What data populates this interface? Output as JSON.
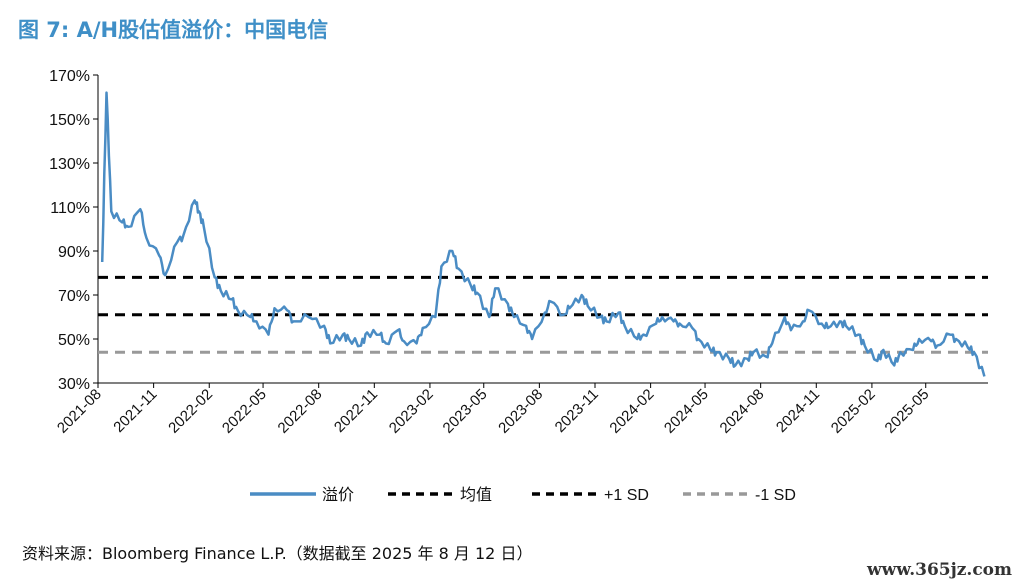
{
  "title": "图 7: A/H股估值溢价：中国电信",
  "source": "资料来源：Bloomberg Finance L.P.（数据截至 2025 年 8 月 12 日）",
  "watermark": "www.365jz.com",
  "chart_data": {
    "type": "line",
    "title": "图 7: A/H股估值溢价：中国电信",
    "xlabel": "",
    "ylabel": "",
    "ylim": [
      30,
      170
    ],
    "y_ticks": [
      "170%",
      "150%",
      "130%",
      "110%",
      "90%",
      "70%",
      "50%",
      "30%"
    ],
    "y_tick_values": [
      170,
      150,
      130,
      110,
      90,
      70,
      50,
      30
    ],
    "x_ticks": [
      "2021-08",
      "2021-11",
      "2022-02",
      "2022-05",
      "2022-08",
      "2022-11",
      "2023-02",
      "2023-05",
      "2023-08",
      "2023-11",
      "2024-02",
      "2024-05",
      "2024-08",
      "2024-11",
      "2025-02",
      "2025-05"
    ],
    "grid": false,
    "legend_position": "bottom",
    "series": [
      {
        "name": "溢价",
        "color": "#4a8cc4",
        "style": "solid",
        "points": [
          [
            "2021-08",
            85
          ],
          [
            "2021-08",
            162
          ],
          [
            "2021-08",
            108
          ],
          [
            "2021-09",
            103
          ],
          [
            "2021-09",
            101
          ],
          [
            "2021-10",
            109
          ],
          [
            "2021-10",
            96
          ],
          [
            "2021-11",
            88
          ],
          [
            "2021-11",
            79
          ],
          [
            "2021-12",
            94
          ],
          [
            "2021-12",
            97
          ],
          [
            "2022-01",
            113
          ],
          [
            "2022-01",
            108
          ],
          [
            "2022-01",
            101
          ],
          [
            "2022-02",
            78
          ],
          [
            "2022-02",
            72
          ],
          [
            "2022-03",
            68
          ],
          [
            "2022-03",
            63
          ],
          [
            "2022-04",
            60
          ],
          [
            "2022-04",
            58
          ],
          [
            "2022-05",
            52
          ],
          [
            "2022-05",
            64
          ],
          [
            "2022-06",
            63
          ],
          [
            "2022-06",
            58
          ],
          [
            "2022-07",
            60
          ],
          [
            "2022-08",
            56
          ],
          [
            "2022-08",
            48
          ],
          [
            "2022-09",
            52
          ],
          [
            "2022-09",
            50
          ],
          [
            "2022-10",
            47
          ],
          [
            "2022-10",
            53
          ],
          [
            "2022-11",
            52
          ],
          [
            "2022-11",
            48
          ],
          [
            "2022-12",
            54
          ],
          [
            "2022-12",
            49
          ],
          [
            "2023-01",
            48
          ],
          [
            "2023-01",
            55
          ],
          [
            "2023-02",
            60
          ],
          [
            "2023-02",
            83
          ],
          [
            "2023-03",
            90
          ],
          [
            "2023-03",
            82
          ],
          [
            "2023-04",
            74
          ],
          [
            "2023-04",
            71
          ],
          [
            "2023-05",
            60
          ],
          [
            "2023-05",
            73
          ],
          [
            "2023-06",
            66
          ],
          [
            "2023-06",
            60
          ],
          [
            "2023-07",
            56
          ],
          [
            "2023-07",
            50
          ],
          [
            "2023-08",
            62
          ],
          [
            "2023-08",
            67
          ],
          [
            "2023-09",
            61
          ],
          [
            "2023-09",
            64
          ],
          [
            "2023-10",
            70
          ],
          [
            "2023-10",
            65
          ],
          [
            "2023-11",
            60
          ],
          [
            "2023-11",
            58
          ],
          [
            "2023-12",
            62
          ],
          [
            "2023-12",
            56
          ],
          [
            "2024-01",
            50
          ],
          [
            "2024-01",
            52
          ],
          [
            "2024-02",
            57
          ],
          [
            "2024-02",
            60
          ],
          [
            "2024-03",
            58
          ],
          [
            "2024-03",
            57
          ],
          [
            "2024-04",
            55
          ],
          [
            "2024-04",
            50
          ],
          [
            "2024-05",
            45
          ],
          [
            "2024-05",
            44
          ],
          [
            "2024-06",
            41
          ],
          [
            "2024-06",
            38
          ],
          [
            "2024-07",
            41
          ],
          [
            "2024-07",
            44
          ],
          [
            "2024-08",
            42
          ],
          [
            "2024-08",
            48
          ],
          [
            "2024-09",
            60
          ],
          [
            "2024-09",
            54
          ],
          [
            "2024-10",
            58
          ],
          [
            "2024-10",
            63
          ],
          [
            "2024-11",
            57
          ],
          [
            "2024-11",
            55
          ],
          [
            "2024-12",
            58
          ],
          [
            "2024-12",
            56
          ],
          [
            "2025-01",
            52
          ],
          [
            "2025-01",
            47
          ],
          [
            "2025-02",
            40
          ],
          [
            "2025-02",
            45
          ],
          [
            "2025-03",
            38
          ],
          [
            "2025-03",
            44
          ],
          [
            "2025-04",
            45
          ],
          [
            "2025-04",
            50
          ],
          [
            "2025-05",
            49
          ],
          [
            "2025-05",
            47
          ],
          [
            "2025-06",
            52
          ],
          [
            "2025-06",
            50
          ],
          [
            "2025-07",
            46
          ],
          [
            "2025-07",
            44
          ],
          [
            "2025-08",
            33
          ]
        ]
      },
      {
        "name": "均值",
        "color": "#000000",
        "style": "dashed",
        "value": 61
      },
      {
        "name": "+1 SD",
        "color": "#000000",
        "style": "dashed",
        "value": 78
      },
      {
        "name": "-1 SD",
        "color": "#999999",
        "style": "dashed",
        "value": 44
      }
    ]
  }
}
